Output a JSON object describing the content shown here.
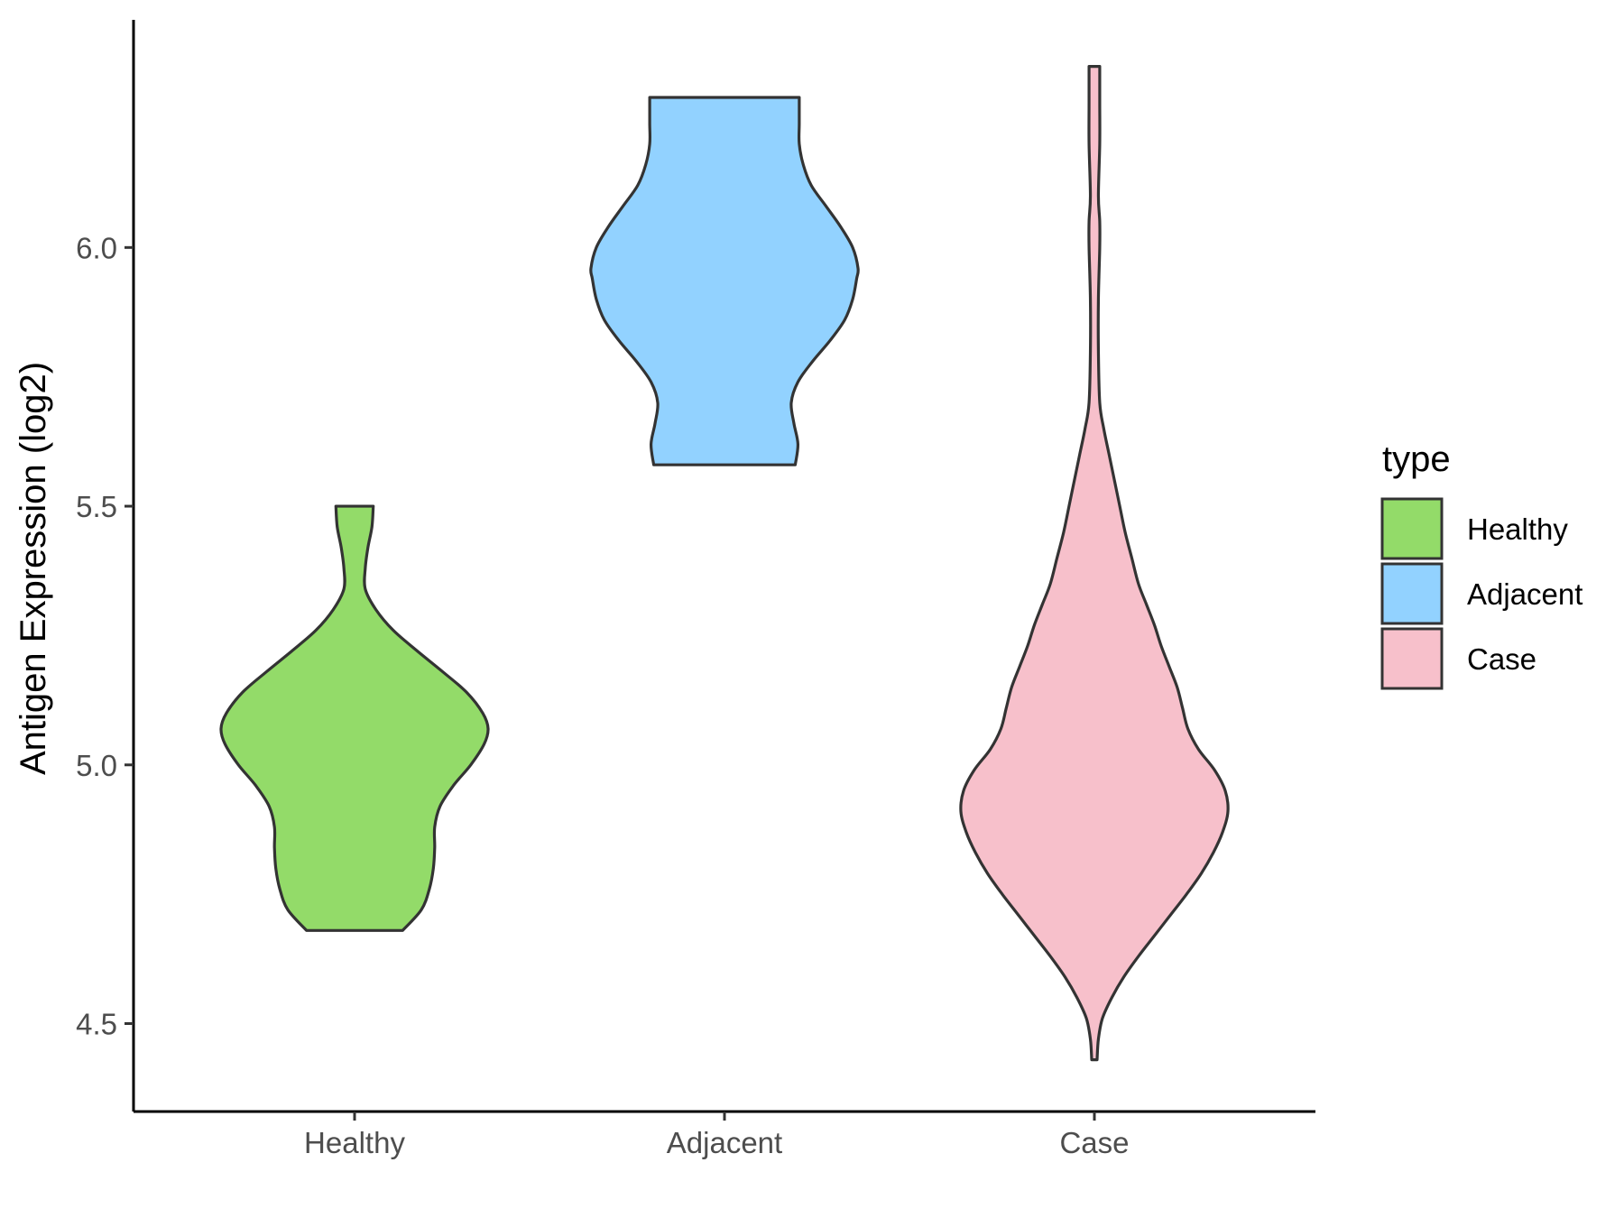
{
  "chart_data": {
    "type": "violin",
    "ylabel": "Antigen Expression (log2)",
    "xlabel": "",
    "ylim": [
      4.33,
      6.44
    ],
    "yticks": [
      4.5,
      5.0,
      5.5,
      6.0
    ],
    "ytick_labels": [
      "4.5",
      "5.0",
      "5.5",
      "6.0"
    ],
    "categories": [
      "Healthy",
      "Adjacent",
      "Case"
    ],
    "legend": {
      "title": "type",
      "position": "right",
      "entries": [
        "Healthy",
        "Adjacent",
        "Case"
      ]
    },
    "grid": false,
    "series": [
      {
        "category": "Healthy",
        "color": "#93DB69",
        "min": 4.68,
        "max": 5.5,
        "density": [
          [
            4.68,
            0.36
          ],
          [
            4.72,
            0.5
          ],
          [
            4.76,
            0.56
          ],
          [
            4.8,
            0.59
          ],
          [
            4.84,
            0.6
          ],
          [
            4.88,
            0.6
          ],
          [
            4.92,
            0.64
          ],
          [
            4.96,
            0.74
          ],
          [
            5.0,
            0.87
          ],
          [
            5.04,
            0.97
          ],
          [
            5.07,
            1.0
          ],
          [
            5.1,
            0.96
          ],
          [
            5.14,
            0.84
          ],
          [
            5.18,
            0.66
          ],
          [
            5.22,
            0.47
          ],
          [
            5.26,
            0.29
          ],
          [
            5.3,
            0.16
          ],
          [
            5.34,
            0.08
          ],
          [
            5.38,
            0.08
          ],
          [
            5.42,
            0.1
          ],
          [
            5.46,
            0.13
          ],
          [
            5.5,
            0.14
          ]
        ]
      },
      {
        "category": "Adjacent",
        "color": "#92D2FF",
        "min": 5.58,
        "max": 6.29,
        "density": [
          [
            5.58,
            0.53
          ],
          [
            5.62,
            0.55
          ],
          [
            5.66,
            0.52
          ],
          [
            5.7,
            0.5
          ],
          [
            5.74,
            0.55
          ],
          [
            5.78,
            0.66
          ],
          [
            5.82,
            0.79
          ],
          [
            5.86,
            0.9
          ],
          [
            5.9,
            0.96
          ],
          [
            5.94,
            0.99
          ],
          [
            5.96,
            1.0
          ],
          [
            6.0,
            0.96
          ],
          [
            6.04,
            0.87
          ],
          [
            6.08,
            0.76
          ],
          [
            6.12,
            0.65
          ],
          [
            6.16,
            0.59
          ],
          [
            6.2,
            0.56
          ],
          [
            6.24,
            0.56
          ],
          [
            6.29,
            0.56
          ]
        ]
      },
      {
        "category": "Case",
        "color": "#F7C0CB",
        "min": 4.43,
        "max": 6.35,
        "density": [
          [
            4.43,
            0.02
          ],
          [
            4.47,
            0.03
          ],
          [
            4.51,
            0.06
          ],
          [
            4.55,
            0.13
          ],
          [
            4.59,
            0.22
          ],
          [
            4.63,
            0.33
          ],
          [
            4.67,
            0.45
          ],
          [
            4.71,
            0.57
          ],
          [
            4.75,
            0.69
          ],
          [
            4.79,
            0.8
          ],
          [
            4.83,
            0.89
          ],
          [
            4.87,
            0.96
          ],
          [
            4.91,
            1.0
          ],
          [
            4.95,
            0.98
          ],
          [
            4.99,
            0.9
          ],
          [
            5.03,
            0.78
          ],
          [
            5.07,
            0.7
          ],
          [
            5.11,
            0.66
          ],
          [
            5.15,
            0.62
          ],
          [
            5.19,
            0.56
          ],
          [
            5.23,
            0.5
          ],
          [
            5.27,
            0.45
          ],
          [
            5.31,
            0.39
          ],
          [
            5.35,
            0.33
          ],
          [
            5.4,
            0.28
          ],
          [
            5.45,
            0.23
          ],
          [
            5.5,
            0.19
          ],
          [
            5.55,
            0.15
          ],
          [
            5.6,
            0.11
          ],
          [
            5.65,
            0.07
          ],
          [
            5.7,
            0.04
          ],
          [
            5.8,
            0.03
          ],
          [
            5.9,
            0.03
          ],
          [
            6.0,
            0.04
          ],
          [
            6.05,
            0.04
          ],
          [
            6.1,
            0.03
          ],
          [
            6.2,
            0.04
          ],
          [
            6.28,
            0.04
          ],
          [
            6.35,
            0.04
          ]
        ]
      }
    ]
  }
}
